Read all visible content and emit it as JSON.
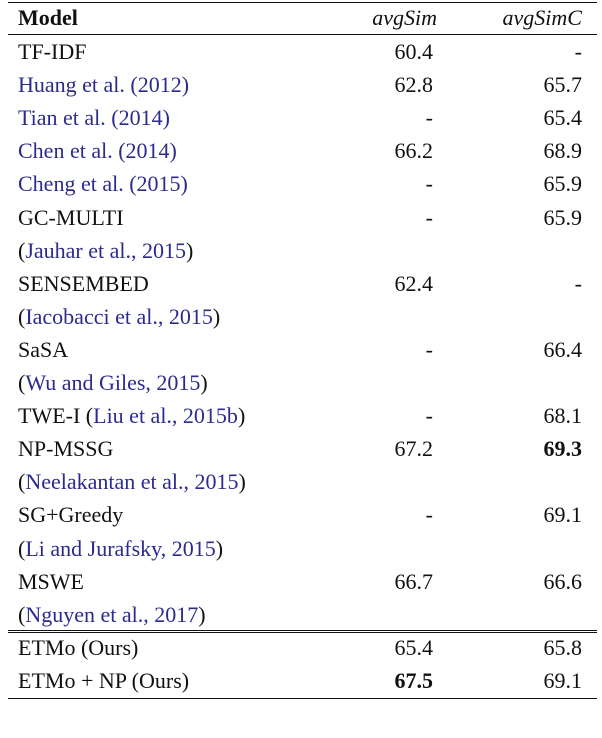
{
  "table": {
    "header": [
      "Model",
      "avgSim",
      "avgSimC"
    ],
    "sections": [
      [
        {
          "model": [
            "TF-IDF"
          ],
          "avgSim": 60.4,
          "avgSimC": "-"
        },
        {
          "model": [
            {
              "text": "Huang et al. (2012)",
              "link": true
            }
          ],
          "avgSim": 62.8,
          "avgSimC": 65.7
        },
        {
          "model": [
            {
              "text": "Tian et al. (2014)",
              "link": true
            }
          ],
          "avgSim": "-",
          "avgSimC": 65.4
        },
        {
          "model": [
            {
              "text": "Chen et al. (2014)",
              "link": true
            }
          ],
          "avgSim": 66.2,
          "avgSimC": 68.9
        },
        {
          "model": [
            {
              "text": "Cheng et al. (2015)",
              "link": true
            }
          ],
          "avgSim": "-",
          "avgSimC": 65.9
        },
        {
          "model": [
            "GC-MULTI"
          ],
          "avgSim": "-",
          "avgSimC": 65.9
        },
        {
          "model": [
            "(",
            {
              "text": "Jauhar et al., 2015",
              "link": true
            },
            ")"
          ]
        },
        {
          "model": [
            "SENSEMBED"
          ],
          "avgSim": 62.4,
          "avgSimC": "-"
        },
        {
          "model": [
            "(",
            {
              "text": "Iacobacci et al., 2015",
              "link": true
            },
            ")"
          ]
        },
        {
          "model": [
            "SaSA"
          ],
          "avgSim": "-",
          "avgSimC": 66.4
        },
        {
          "model": [
            "(",
            {
              "text": "Wu and Giles, 2015",
              "link": true
            },
            ")"
          ]
        },
        {
          "model": [
            "TWE-I (",
            {
              "text": "Liu et al., 2015b",
              "link": true
            },
            ")"
          ],
          "avgSim": "-",
          "avgSimC": 68.1
        },
        {
          "model": [
            "NP-MSSG"
          ],
          "avgSim": 67.2,
          "avgSimC": 69.3,
          "bold": "avgSimC"
        },
        {
          "model": [
            "(",
            {
              "text": "Neelakantan et al., 2015",
              "link": true
            },
            ")"
          ]
        },
        {
          "model": [
            "SG+Greedy"
          ],
          "avgSim": "-",
          "avgSimC": 69.1
        },
        {
          "model": [
            "(",
            {
              "text": "Li and Jurafsky, 2015",
              "link": true
            },
            ")"
          ]
        },
        {
          "model": [
            "MSWE"
          ],
          "avgSim": 66.7,
          "avgSimC": 66.6
        },
        {
          "model": [
            "(",
            {
              "text": "Nguyen et al., 2017",
              "link": true
            },
            ")"
          ]
        }
      ],
      [
        {
          "model": [
            "ETMo (Ours)"
          ],
          "avgSim": 65.4,
          "avgSimC": 65.8
        },
        {
          "model": [
            "ETMo + NP (Ours)"
          ],
          "avgSim": 67.5,
          "avgSimC": 69.1,
          "bold": "avgSim"
        }
      ]
    ]
  }
}
